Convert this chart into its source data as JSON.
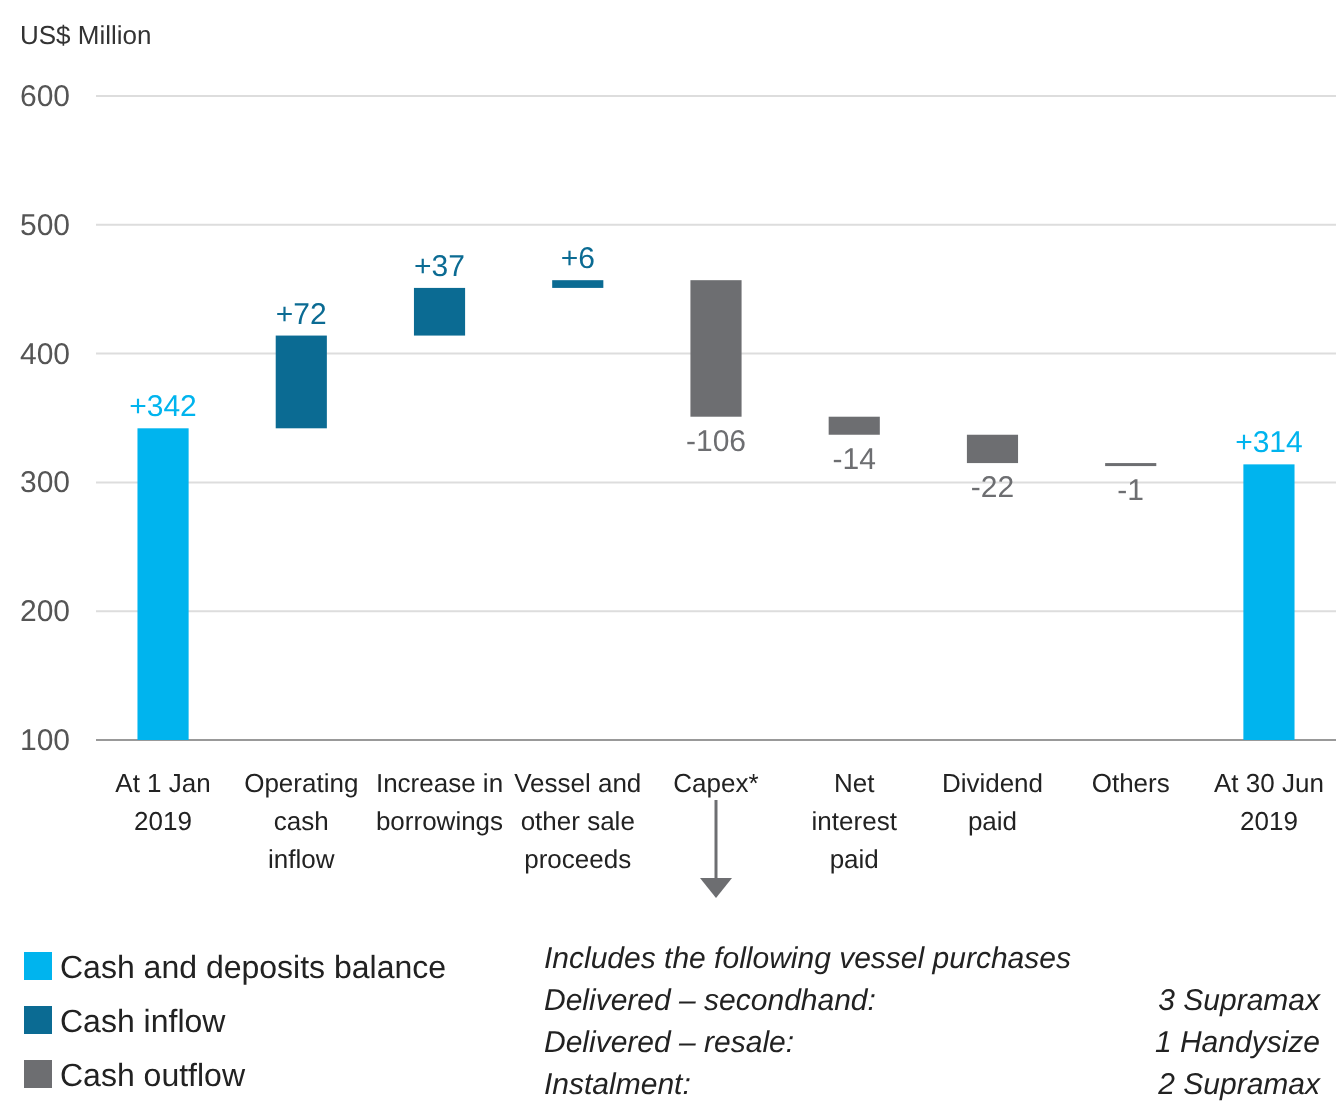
{
  "chart_data": {
    "type": "bar",
    "ylabel": "US$ Million",
    "categories": [
      "At 1 Jan\n2019",
      "Operating\ncash\ninflow",
      "Increase in\nborrowings",
      "Vessel and\nother sale\nproceeds",
      "Capex*",
      "Net\ninterest\npaid",
      "Dividend\npaid",
      "Others",
      "At 30 Jun\n2019"
    ],
    "series": [
      {
        "name": "Cash and deposits balance",
        "color": "#00b4ee",
        "values": [
          342,
          null,
          null,
          null,
          null,
          null,
          null,
          null,
          314
        ],
        "value_labels": [
          "+342",
          null,
          null,
          null,
          null,
          null,
          null,
          null,
          "+314"
        ]
      },
      {
        "name": "Cash inflow",
        "color": "#0b6b93",
        "base": [
          null,
          342,
          414,
          451,
          null,
          null,
          null,
          null,
          null
        ],
        "values": [
          null,
          72,
          37,
          6,
          null,
          null,
          null,
          null,
          null
        ],
        "value_labels": [
          null,
          "+72",
          "+37",
          "+6",
          null,
          null,
          null,
          null,
          null
        ]
      },
      {
        "name": "Cash outflow",
        "color": "#6d6e71",
        "base": [
          null,
          null,
          null,
          null,
          457,
          351,
          337,
          315,
          null
        ],
        "values": [
          null,
          null,
          null,
          null,
          -106,
          -14,
          -22,
          -1,
          null
        ],
        "value_labels": [
          null,
          null,
          null,
          null,
          "-106",
          "-14",
          "-22",
          "-1",
          null
        ]
      }
    ],
    "ylim": [
      100,
      600
    ],
    "yticks": [
      100,
      200,
      300,
      400,
      500,
      600
    ],
    "grid": "y",
    "legend": "bottom left",
    "annotations": [
      "Includes the following vessel purchases",
      "Delivered – secondhand:",
      "3 Supramax",
      "Delivered – resale:",
      "1 Handysize",
      "Instalment:",
      "2 Supramax"
    ]
  }
}
